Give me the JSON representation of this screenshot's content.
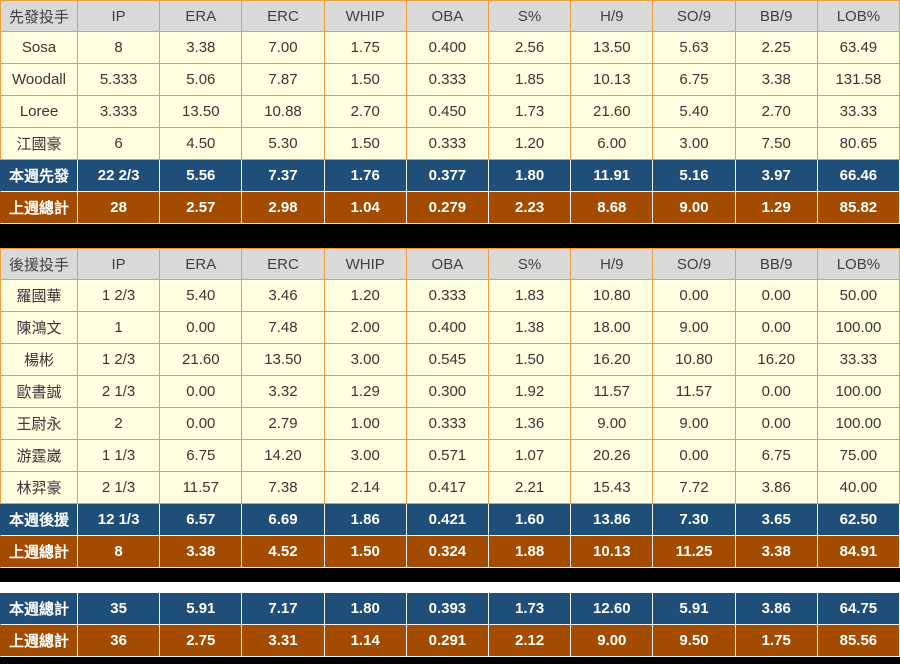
{
  "colors": {
    "grid_border": "#ED9C3F",
    "header_row_bg": "#D9D9D9",
    "data_row_bg": "#FFFFE2",
    "this_week_row_bg": "#1F4E79",
    "last_week_row_bg": "#A34C00",
    "separator_bar": "#000000",
    "highlight_text": "#FFFFFF"
  },
  "chart_data": {
    "type": "table",
    "title": "Pitching statistics — starters, relievers and weekly totals",
    "columns": [
      "IP",
      "ERA",
      "ERC",
      "WHIP",
      "OBA",
      "S%",
      "H/9",
      "SO/9",
      "BB/9",
      "LOB%"
    ],
    "tables": [
      {
        "name": "starters",
        "header_label": "先發投手",
        "rows": [
          {
            "type": "data",
            "label": "Sosa",
            "values": [
              "8",
              "3.38",
              "7.00",
              "1.75",
              "0.400",
              "2.56",
              "13.50",
              "5.63",
              "2.25",
              "63.49"
            ]
          },
          {
            "type": "data",
            "label": "Woodall",
            "values": [
              "5.333",
              "5.06",
              "7.87",
              "1.50",
              "0.333",
              "1.85",
              "10.13",
              "6.75",
              "3.38",
              "131.58"
            ]
          },
          {
            "type": "data",
            "label": "Loree",
            "values": [
              "3.333",
              "13.50",
              "10.88",
              "2.70",
              "0.450",
              "1.73",
              "21.60",
              "5.40",
              "2.70",
              "33.33"
            ]
          },
          {
            "type": "data",
            "label": "江國豪",
            "values": [
              "6",
              "4.50",
              "5.30",
              "1.50",
              "0.333",
              "1.20",
              "6.00",
              "3.00",
              "7.50",
              "80.65"
            ]
          },
          {
            "type": "week",
            "label": "本週先發",
            "values": [
              "22 2/3",
              "5.56",
              "7.37",
              "1.76",
              "0.377",
              "1.80",
              "11.91",
              "5.16",
              "3.97",
              "66.46"
            ]
          },
          {
            "type": "prev",
            "label": "上週總計",
            "values": [
              "28",
              "2.57",
              "2.98",
              "1.04",
              "0.279",
              "2.23",
              "8.68",
              "9.00",
              "1.29",
              "85.82"
            ]
          }
        ]
      },
      {
        "name": "relievers",
        "header_label": "後援投手",
        "rows": [
          {
            "type": "data",
            "label": "羅國華",
            "values": [
              "1 2/3",
              "5.40",
              "3.46",
              "1.20",
              "0.333",
              "1.83",
              "10.80",
              "0.00",
              "0.00",
              "50.00"
            ]
          },
          {
            "type": "data",
            "label": "陳鴻文",
            "values": [
              "1",
              "0.00",
              "7.48",
              "2.00",
              "0.400",
              "1.38",
              "18.00",
              "9.00",
              "0.00",
              "100.00"
            ]
          },
          {
            "type": "data",
            "label": "楊彬",
            "values": [
              "1 2/3",
              "21.60",
              "13.50",
              "3.00",
              "0.545",
              "1.50",
              "16.20",
              "10.80",
              "16.20",
              "33.33"
            ]
          },
          {
            "type": "data",
            "label": "歐書誠",
            "values": [
              "2 1/3",
              "0.00",
              "3.32",
              "1.29",
              "0.300",
              "1.92",
              "11.57",
              "11.57",
              "0.00",
              "100.00"
            ]
          },
          {
            "type": "data",
            "label": "王尉永",
            "values": [
              "2",
              "0.00",
              "2.79",
              "1.00",
              "0.333",
              "1.36",
              "9.00",
              "9.00",
              "0.00",
              "100.00"
            ]
          },
          {
            "type": "data",
            "label": "游霆崴",
            "values": [
              "1 1/3",
              "6.75",
              "14.20",
              "3.00",
              "0.571",
              "1.07",
              "20.26",
              "0.00",
              "6.75",
              "75.00"
            ]
          },
          {
            "type": "data",
            "label": "林羿豪",
            "values": [
              "2 1/3",
              "11.57",
              "7.38",
              "2.14",
              "0.417",
              "2.21",
              "15.43",
              "7.72",
              "3.86",
              "40.00"
            ]
          },
          {
            "type": "week",
            "label": "本週後援",
            "values": [
              "12 1/3",
              "6.57",
              "6.69",
              "1.86",
              "0.421",
              "1.60",
              "13.86",
              "7.30",
              "3.65",
              "62.50"
            ]
          },
          {
            "type": "prev",
            "label": "上週總計",
            "values": [
              "8",
              "3.38",
              "4.52",
              "1.50",
              "0.324",
              "1.88",
              "10.13",
              "11.25",
              "3.38",
              "84.91"
            ]
          }
        ]
      },
      {
        "name": "totals",
        "header_label": null,
        "rows": [
          {
            "type": "week",
            "label": "本週總計",
            "values": [
              "35",
              "5.91",
              "7.17",
              "1.80",
              "0.393",
              "1.73",
              "12.60",
              "5.91",
              "3.86",
              "64.75"
            ]
          },
          {
            "type": "prev",
            "label": "上週總計",
            "values": [
              "36",
              "2.75",
              "3.31",
              "1.14",
              "0.291",
              "2.12",
              "9.00",
              "9.50",
              "1.75",
              "85.56"
            ]
          }
        ]
      }
    ]
  }
}
